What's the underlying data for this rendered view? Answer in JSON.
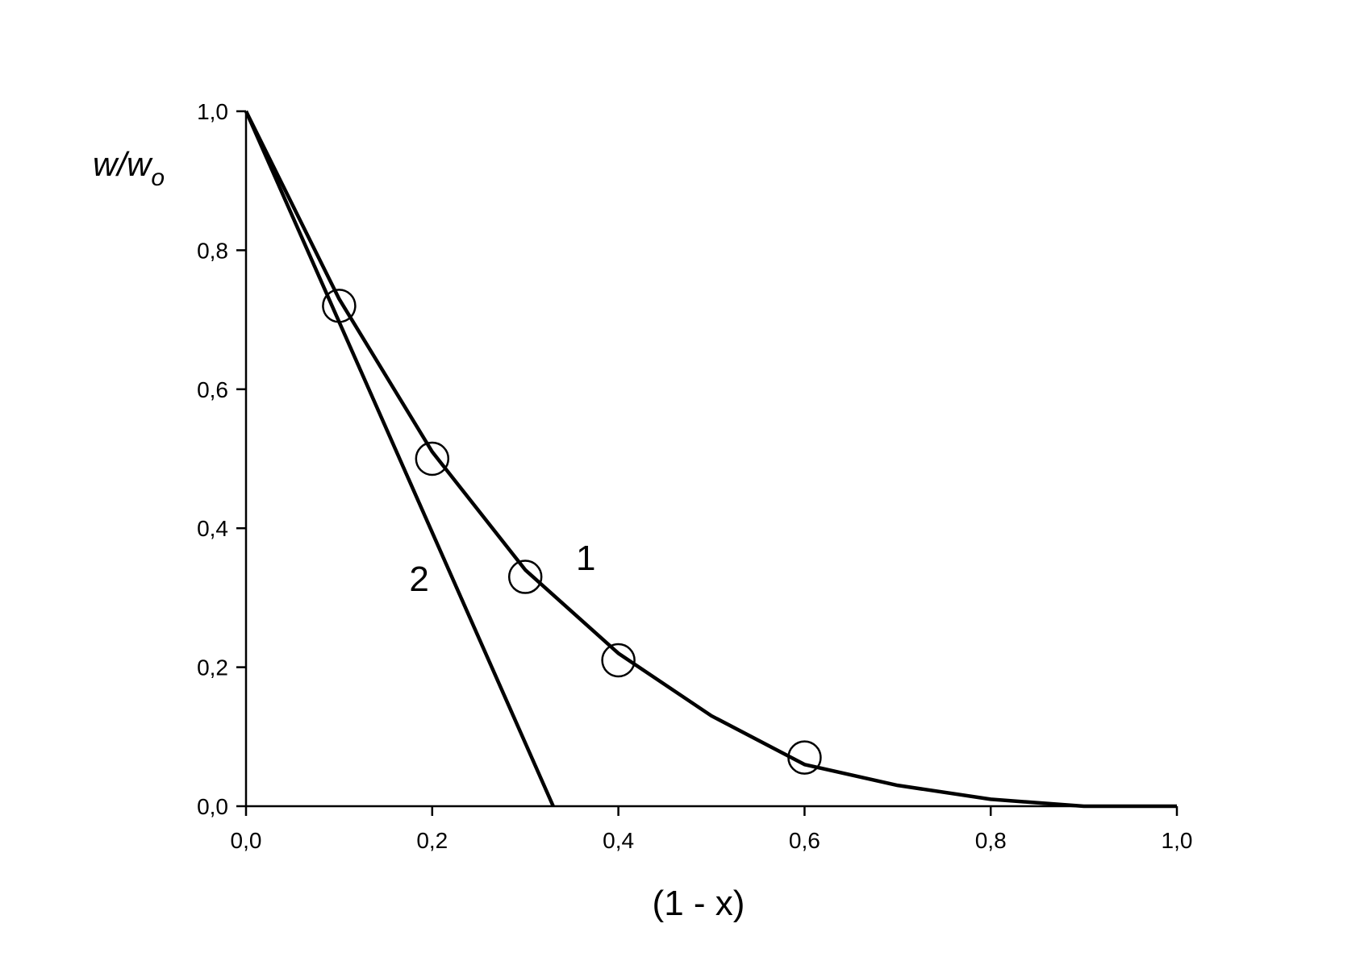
{
  "chart_data": {
    "type": "line",
    "x_label": "(1 - x)",
    "y_label": "w/w",
    "y_label_sub": "o",
    "color": "#000000",
    "xlim": [
      0,
      1
    ],
    "ylim": [
      0,
      1
    ],
    "xticks": [
      {
        "value": 0,
        "label": "0,0"
      },
      {
        "value": 0.2,
        "label": "0,2"
      },
      {
        "value": 0.4,
        "label": "0,4"
      },
      {
        "value": 0.6,
        "label": "0,6"
      },
      {
        "value": 0.8,
        "label": "0,8"
      },
      {
        "value": 1,
        "label": "1,0"
      }
    ],
    "yticks": [
      {
        "value": 0,
        "label": "0,0"
      },
      {
        "value": 0.2,
        "label": "0,2"
      },
      {
        "value": 0.4,
        "label": "0,4"
      },
      {
        "value": 0.6,
        "label": "0,6"
      },
      {
        "value": 0.8,
        "label": "0,8"
      },
      {
        "value": 1,
        "label": "1,0"
      }
    ],
    "series": [
      {
        "marker": "circle",
        "x": [
          0.1,
          0.2,
          0.3,
          0.4,
          0.6
        ],
        "values": [
          0.72,
          0.5,
          0.33,
          0.21,
          0.07
        ]
      },
      {
        "marker": "none",
        "x": [
          0,
          0.1,
          0.2,
          0.3,
          0.4,
          0.5,
          0.6,
          0.7,
          0.8,
          0.9,
          1
        ],
        "values": [
          1,
          0.73,
          0.51,
          0.34,
          0.22,
          0.13,
          0.06,
          0.03,
          0.01,
          0,
          0
        ]
      },
      {
        "marker": "none",
        "x": [
          0,
          0.33
        ],
        "values": [
          1,
          0
        ]
      }
    ],
    "annotations": [
      {
        "text": "1",
        "x": 0.365,
        "y": 0.34
      },
      {
        "text": "2",
        "x": 0.186,
        "y": 0.31
      }
    ]
  }
}
